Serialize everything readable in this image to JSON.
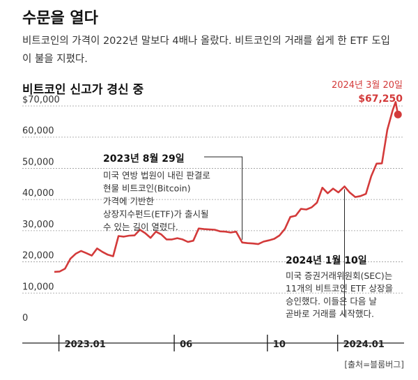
{
  "headline": "수문을 열다",
  "subtitle": "비트코인의 가격이 2022년 말보다 4배나 올랐다. 비트코인의 거래를 쉽게 한 ETF 도입이 불을 지폈다.",
  "source": "[출처=블룸버그]",
  "colors": {
    "series": "#d33a3a",
    "text": "#222222",
    "grid": "#999999"
  },
  "chart_data": {
    "type": "line",
    "title": "비트코인 신고가 경신 중",
    "xlabel": "",
    "ylabel": "",
    "ylim": [
      0,
      70000
    ],
    "xlim": [
      "2022-12-26",
      "2024-03-28"
    ],
    "y_ticks": [
      {
        "value": 70000,
        "label": "$70,000"
      },
      {
        "value": 60000,
        "label": "60,000"
      },
      {
        "value": 50000,
        "label": "50,000"
      },
      {
        "value": 40000,
        "label": "40,000"
      },
      {
        "value": 30000,
        "label": "30,000"
      },
      {
        "value": 20000,
        "label": "20,000"
      },
      {
        "value": 10000,
        "label": "10,000"
      },
      {
        "value": 0,
        "label": "0"
      }
    ],
    "x_ticks": [
      {
        "date": "2023-01-01",
        "label": "2023.01"
      },
      {
        "date": "2023-06-01",
        "label": "06"
      },
      {
        "date": "2023-10-01",
        "label": "10"
      },
      {
        "date": "2024-01-01",
        "label": "2024.01"
      }
    ],
    "grid": true,
    "series": [
      {
        "points": [
          [
            "2022-12-26",
            16800
          ],
          [
            "2023-01-02",
            16900
          ],
          [
            "2023-01-09",
            17800
          ],
          [
            "2023-01-16",
            21000
          ],
          [
            "2023-01-23",
            22600
          ],
          [
            "2023-01-30",
            23500
          ],
          [
            "2023-02-06",
            22800
          ],
          [
            "2023-02-13",
            22000
          ],
          [
            "2023-02-20",
            24300
          ],
          [
            "2023-02-27",
            23200
          ],
          [
            "2023-03-06",
            22300
          ],
          [
            "2023-03-13",
            21800
          ],
          [
            "2023-03-20",
            28300
          ],
          [
            "2023-03-27",
            28100
          ],
          [
            "2023-04-03",
            28400
          ],
          [
            "2023-04-10",
            28500
          ],
          [
            "2023-04-17",
            30300
          ],
          [
            "2023-04-24",
            29200
          ],
          [
            "2023-05-01",
            27700
          ],
          [
            "2023-05-08",
            29700
          ],
          [
            "2023-05-15",
            28800
          ],
          [
            "2023-05-22",
            27200
          ],
          [
            "2023-05-29",
            27200
          ],
          [
            "2023-06-05",
            27600
          ],
          [
            "2023-06-12",
            27200
          ],
          [
            "2023-06-19",
            26400
          ],
          [
            "2023-06-26",
            26800
          ],
          [
            "2023-07-03",
            30700
          ],
          [
            "2023-07-10",
            30500
          ],
          [
            "2023-07-17",
            30400
          ],
          [
            "2023-07-24",
            30300
          ],
          [
            "2023-07-31",
            29800
          ],
          [
            "2023-08-07",
            29700
          ],
          [
            "2023-08-14",
            29400
          ],
          [
            "2023-08-21",
            29700
          ],
          [
            "2023-08-29",
            26200
          ],
          [
            "2023-09-05",
            26000
          ],
          [
            "2023-09-12",
            25900
          ],
          [
            "2023-09-19",
            25700
          ],
          [
            "2023-09-26",
            26500
          ],
          [
            "2023-10-03",
            26900
          ],
          [
            "2023-10-10",
            27400
          ],
          [
            "2023-10-17",
            28500
          ],
          [
            "2023-10-24",
            30600
          ],
          [
            "2023-10-31",
            34400
          ],
          [
            "2023-11-07",
            34800
          ],
          [
            "2023-11-14",
            37000
          ],
          [
            "2023-11-21",
            36800
          ],
          [
            "2023-11-28",
            37500
          ],
          [
            "2023-12-05",
            39000
          ],
          [
            "2023-12-12",
            43800
          ],
          [
            "2023-12-19",
            42000
          ],
          [
            "2023-12-26",
            43500
          ],
          [
            "2024-01-02",
            42300
          ],
          [
            "2024-01-10",
            44200
          ],
          [
            "2024-01-17",
            42200
          ],
          [
            "2024-01-24",
            40800
          ],
          [
            "2024-01-31",
            41100
          ],
          [
            "2024-02-07",
            41800
          ],
          [
            "2024-02-14",
            47500
          ],
          [
            "2024-02-21",
            51500
          ],
          [
            "2024-02-28",
            51600
          ],
          [
            "2024-03-06",
            62300
          ],
          [
            "2024-03-13",
            68600
          ],
          [
            "2024-03-17",
            71300
          ],
          [
            "2024-03-20",
            67250
          ]
        ]
      }
    ],
    "annotations": [
      {
        "date": "2023-08-29",
        "label": "2023년 8월 29일",
        "lines": [
          "미국 연방 법원이 내린 판결로",
          "현물 비트코인(Bitcoin)",
          "가격에 기반한",
          "상장지수펀드(ETF)가 출시될",
          "수 있는 길이 열렸다."
        ]
      },
      {
        "date": "2024-01-10",
        "label": "2024년 1월 10일",
        "lines": [
          "미국 증권거래위원회(SEC)는",
          "11개의 비트코인 ETF 상장을",
          "승인했다. 이들은 다음 날",
          "곧바로 거래를 시작했다."
        ]
      }
    ],
    "highlight": {
      "date": "2024-03-20",
      "date_label": "2024년 3월 20일",
      "value": 67250,
      "value_label": "$67,250"
    }
  }
}
